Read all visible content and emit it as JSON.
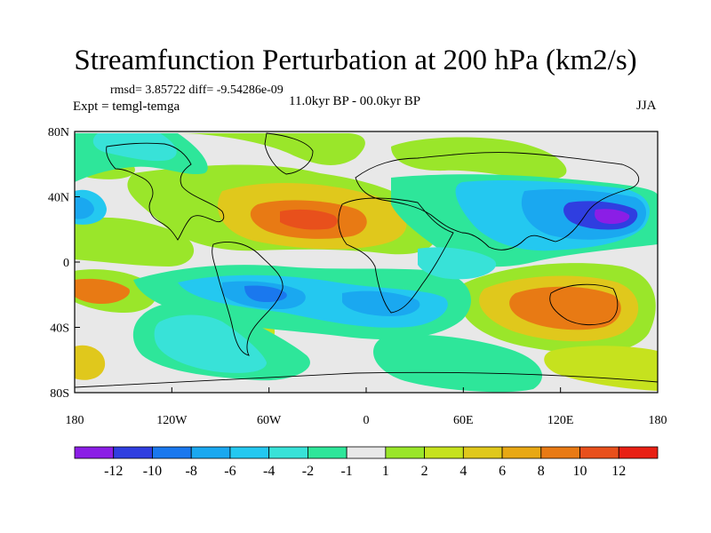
{
  "title": "Streamfunction Perturbation at 200 hPa (km2/s)",
  "stats": "rmsd= 3.85722 diff= -9.54286e-09",
  "experiment": "Expt = temgl-temga",
  "period": "11.0kyr BP - 00.0kyr BP",
  "season": "JJA",
  "map": {
    "lat_ticks": [
      {
        "label": "80N",
        "value": 80
      },
      {
        "label": "40N",
        "value": 40
      },
      {
        "label": "0",
        "value": 0
      },
      {
        "label": "40S",
        "value": -40
      },
      {
        "label": "80S",
        "value": -80
      }
    ],
    "lon_ticks": [
      {
        "label": "180",
        "value": -180
      },
      {
        "label": "120W",
        "value": -120
      },
      {
        "label": "60W",
        "value": -60
      },
      {
        "label": "0",
        "value": 0
      },
      {
        "label": "60E",
        "value": 60
      },
      {
        "label": "120E",
        "value": 120
      },
      {
        "label": "180",
        "value": 180
      }
    ],
    "lat_range": [
      -80,
      80
    ],
    "lon_range": [
      -180,
      180
    ],
    "background_color": "#e8e8e8"
  },
  "colorbar": {
    "colors": [
      "#8b1ee6",
      "#2f3ee0",
      "#1a78ee",
      "#1aa8f0",
      "#24c8f0",
      "#38e2d8",
      "#2ee69a",
      "#e8e8e8",
      "#9ae62a",
      "#c6e21e",
      "#e0c81c",
      "#e8a814",
      "#e87a14",
      "#e8501c",
      "#e82014"
    ],
    "labels": [
      "-12",
      "-10",
      "-8",
      "-6",
      "-4",
      "-2",
      "-1",
      "1",
      "2",
      "4",
      "6",
      "8",
      "10",
      "12"
    ]
  }
}
